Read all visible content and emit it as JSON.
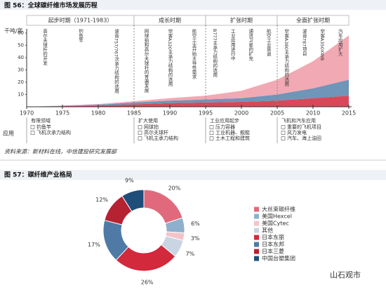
{
  "chart_data": [
    {
      "type": "area",
      "title": "图 56：全球碳纤维市场发展历程",
      "y_label": "千吨/年",
      "x": [
        1970,
        1975,
        1980,
        1985,
        1990,
        1995,
        2000,
        2005,
        2010,
        2015
      ],
      "xlim": [
        1970,
        2015
      ],
      "xticks": [
        1970,
        1975,
        1980,
        1985,
        1990,
        1995,
        2000,
        2005,
        2010,
        2015
      ],
      "ylim": [
        0,
        60
      ],
      "yticks": [
        10,
        20,
        30,
        40,
        50,
        60
      ],
      "series": [
        {
          "color": "#d9485a",
          "values": [
            0,
            0.5,
            1,
            2,
            3,
            3.5,
            4,
            5,
            7,
            9
          ]
        },
        {
          "color": "#6f95b8",
          "values": [
            0,
            0.3,
            0.7,
            1.5,
            2,
            2.5,
            3,
            5,
            8,
            13
          ]
        },
        {
          "color": "#f1a9b3",
          "values": [
            0,
            0.2,
            0.5,
            1,
            2,
            3,
            6,
            12,
            22,
            36
          ]
        }
      ],
      "periods": [
        {
          "label": "起步时期（1971-1983）",
          "from": 1970,
          "to": 1985,
          "annotations": [
            "高尔夫球杆的开发",
            "钓鱼竿",
            "波音757/767次承力结构的选用"
          ],
          "application": {
            "heading": "有限领域",
            "items": [
              "钓鱼竿",
              "飞机次承力结构"
            ]
          }
        },
        {
          "label": "成长时期",
          "from": 1985,
          "to": 1995,
          "annotations": [
            "网球拍和高尔夫球杆的普遍发展",
            "空客A320主承力结构的选用",
            "航空工业开始主导性需求"
          ],
          "application": {
            "heading": "扩大使用",
            "items": [
              "网球拍",
              "高尔夫球杆",
              "飞机主承力结构"
            ]
          }
        },
        {
          "label": "扩张时期",
          "from": 1995,
          "to": 2005,
          "annotations": [
            "B777主承力结构的选用",
            "工业应用进行中",
            "通讯卫星的扩充",
            "航空工业衰退"
          ],
          "application": {
            "heading": "工业应用起步",
            "items": [
              "压力容器",
              "工业机器、舰艇",
              "土木工程和建筑"
            ]
          }
        },
        {
          "label": "全面扩张时期",
          "from": 2005,
          "to": 2015,
          "annotations": [
            "空客A380主承力结构的选用",
            "波音787项目",
            "空客A350XWB",
            "汽车应用扩大"
          ],
          "application": {
            "heading": "飞机和汽车应用",
            "items": [
              "重要的飞机项目",
              "风力发电",
              "汽车、海上油田"
            ]
          }
        }
      ],
      "application_label": "应用",
      "source": "资料来源：新材料在线，中信建投研究发展部"
    },
    {
      "type": "pie",
      "title": "图 57：碳纤维产业格局",
      "categories": [
        "大丝束碳纤维",
        "美国Hexcel",
        "美国Cytec",
        "其他",
        "日本东丽",
        "日本东邦",
        "日本三菱",
        "中国台塑集团"
      ],
      "values": [
        20,
        6,
        3,
        7,
        26,
        17,
        12,
        9
      ],
      "value_labels": [
        "20%",
        "6%",
        "3%",
        "7%",
        "26%",
        "17%",
        "12%",
        "9%"
      ],
      "colors": [
        "#e06a7b",
        "#8fb0cc",
        "#f4c3ca",
        "#c9d5e2",
        "#d2293d",
        "#4f7aa5",
        "#b52232",
        "#1f4e79"
      ]
    }
  ],
  "watermark": "山石观市"
}
